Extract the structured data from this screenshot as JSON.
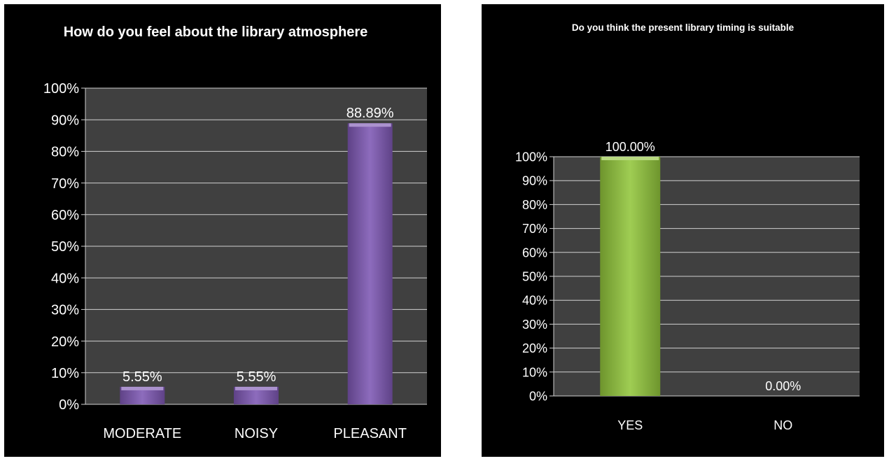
{
  "colors": {
    "panel_background": "#000000",
    "plot_background": "#404040",
    "gridline": "#d0d0d0",
    "text": "#ffffff",
    "bar_purple": "#7e58b4",
    "bar_green": "#92c63c"
  },
  "chart_data": [
    {
      "type": "bar",
      "title": "How do you feel about the library atmosphere",
      "categories": [
        "MODERATE",
        "NOISY",
        "PLEASANT"
      ],
      "values": [
        5.55,
        5.55,
        88.89
      ],
      "data_labels": [
        "5.55%",
        "5.55%",
        "88.89%"
      ],
      "y_ticks": [
        "0%",
        "10%",
        "20%",
        "30%",
        "40%",
        "50%",
        "60%",
        "70%",
        "80%",
        "90%",
        "100%"
      ],
      "ylim": [
        0,
        100
      ],
      "grid": true,
      "bar_color": "#7e58b4"
    },
    {
      "type": "bar",
      "title": "Do you think the present library timing is suitable",
      "categories": [
        "YES",
        "NO"
      ],
      "values": [
        100,
        0
      ],
      "data_labels": [
        "100.00%",
        "0.00%"
      ],
      "y_ticks": [
        "0%",
        "10%",
        "20%",
        "30%",
        "40%",
        "50%",
        "60%",
        "70%",
        "80%",
        "90%",
        "100%"
      ],
      "ylim": [
        0,
        100
      ],
      "grid": true,
      "bar_color": "#92c63c"
    }
  ]
}
